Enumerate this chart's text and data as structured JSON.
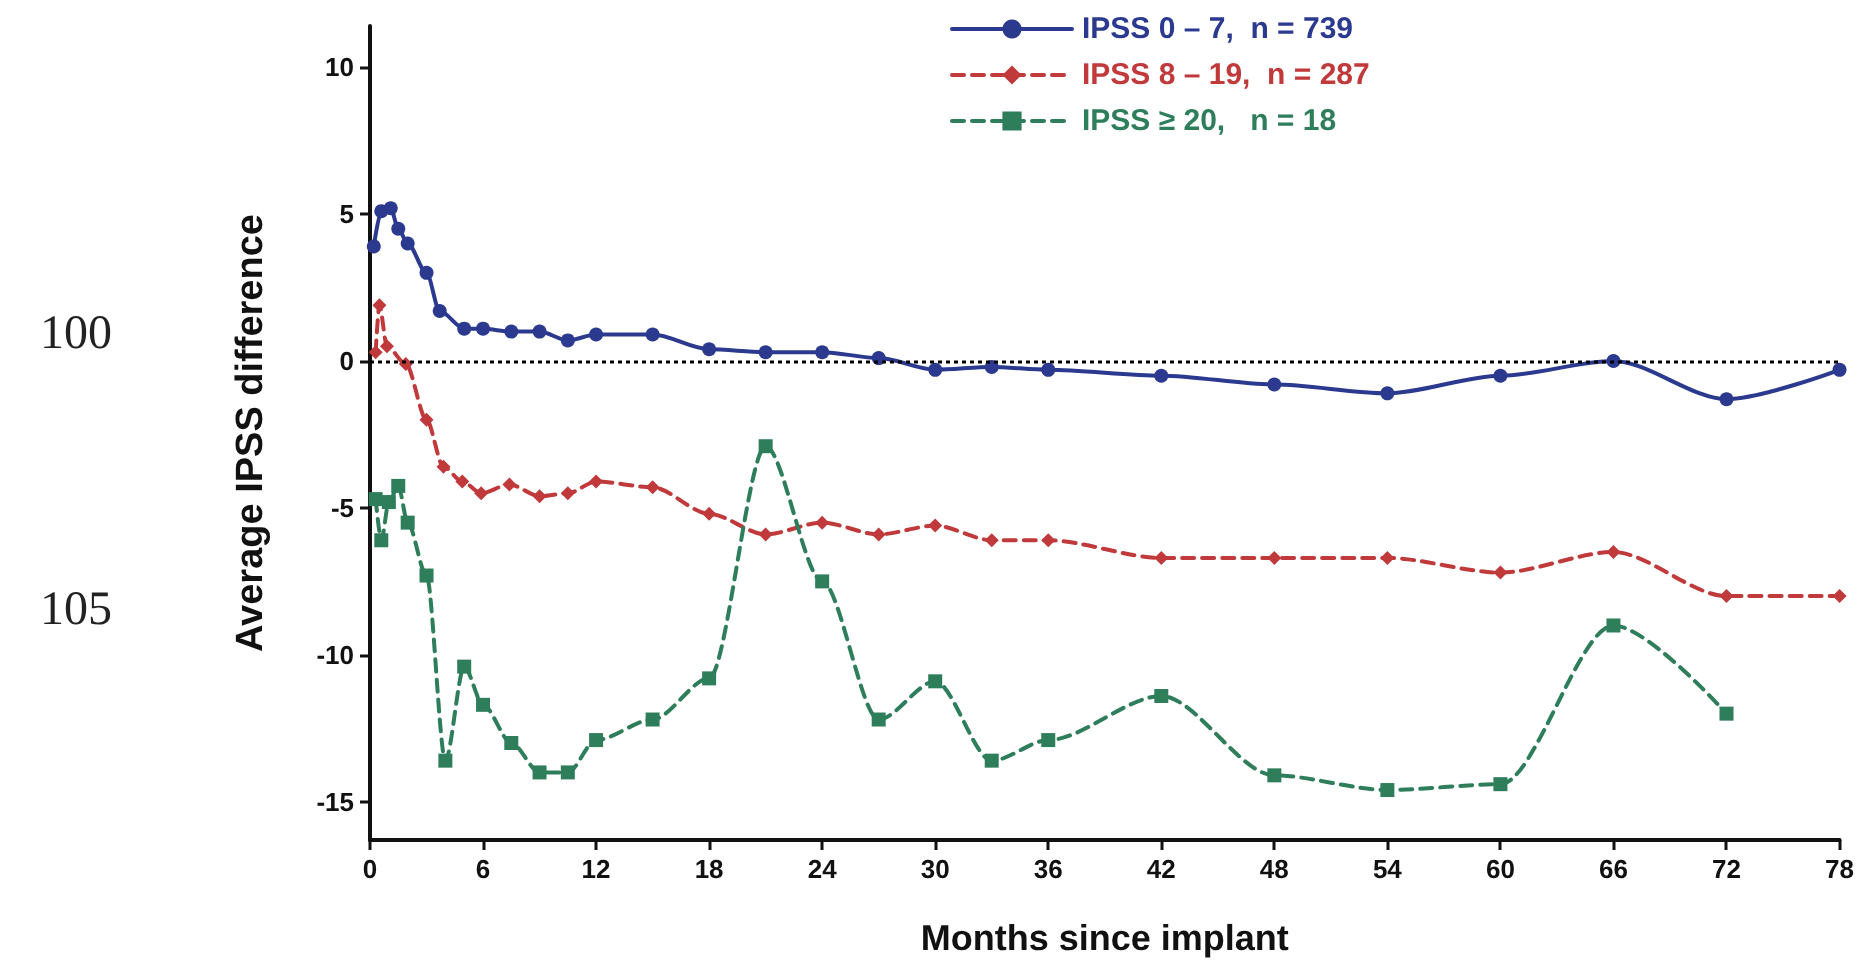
{
  "chart_data": {
    "type": "line",
    "xlabel": "Months since implant",
    "ylabel": "Average IPSS difference",
    "annotations": [
      "100",
      "105"
    ],
    "xlim": [
      0,
      78
    ],
    "xticks": [
      0,
      6,
      12,
      18,
      24,
      30,
      36,
      42,
      48,
      54,
      60,
      66,
      72,
      78
    ],
    "ylim": [
      -16.3,
      11.4
    ],
    "yticks": [
      -15,
      -10,
      -5,
      0,
      5,
      10
    ],
    "grid": false,
    "legend": "top",
    "ref_lines": [
      {
        "axis": "y",
        "value": 0,
        "color": "#000000",
        "line_style": "dotted"
      }
    ],
    "series": [
      {
        "name": "IPSS 0 – 7,  n = 739",
        "color": "#2b3a8f",
        "marker": "circle",
        "line_style": "solid",
        "x": [
          0.2,
          0.6,
          1.1,
          1.5,
          2.0,
          3,
          3.7,
          5,
          6,
          7.5,
          9,
          10.5,
          12,
          15,
          18,
          21,
          24,
          27,
          30,
          33,
          36,
          42,
          48,
          54,
          60,
          66,
          72,
          78
        ],
        "values": [
          3.9,
          5.1,
          5.2,
          4.5,
          4.0,
          3.0,
          1.7,
          1.1,
          1.1,
          1.0,
          1.0,
          0.7,
          0.9,
          0.9,
          0.4,
          0.3,
          0.3,
          0.1,
          -0.3,
          -0.2,
          -0.3,
          -0.5,
          -0.8,
          -1.1,
          -0.5,
          0.0,
          -1.3,
          -0.3
        ]
      },
      {
        "name": "IPSS 8 – 19,  n = 287",
        "color": "#c0393b",
        "marker": "diamond",
        "line_style": "dashed",
        "x": [
          0.3,
          0.5,
          0.9,
          1.9,
          3,
          3.9,
          4.9,
          5.9,
          7.4,
          9,
          10.5,
          12,
          15,
          18,
          21,
          24,
          27,
          30,
          33,
          36,
          42,
          48,
          54,
          60,
          66,
          72,
          78
        ],
        "values": [
          0.3,
          1.9,
          0.5,
          -0.1,
          -2.0,
          -3.6,
          -4.1,
          -4.5,
          -4.2,
          -4.6,
          -4.5,
          -4.1,
          -4.3,
          -5.2,
          -5.9,
          -5.5,
          -5.9,
          -5.6,
          -6.1,
          -6.1,
          -6.7,
          -6.7,
          -6.7,
          -7.2,
          -6.5,
          -8.0,
          -8.0
        ]
      },
      {
        "name": "IPSS ≥ 20,   n = 18",
        "color": "#2e7d5b",
        "marker": "square",
        "line_style": "dashed",
        "x": [
          0.3,
          0.6,
          1.0,
          1.5,
          2,
          3,
          4,
          5,
          6,
          7.5,
          9,
          10.5,
          12,
          15,
          18,
          21,
          24,
          27,
          30,
          33,
          36,
          42,
          48,
          54,
          60,
          66,
          72
        ],
        "values": [
          -4.7,
          -6.1,
          -4.8,
          -4.25,
          -5.5,
          -7.3,
          -13.6,
          -10.4,
          -11.7,
          -13.0,
          -14.0,
          -14.0,
          -12.9,
          -12.2,
          -10.8,
          -2.9,
          -7.5,
          -12.2,
          -10.9,
          -13.6,
          -12.9,
          -11.4,
          -14.1,
          -14.6,
          -14.4,
          -9.0,
          -12.0
        ]
      }
    ]
  }
}
